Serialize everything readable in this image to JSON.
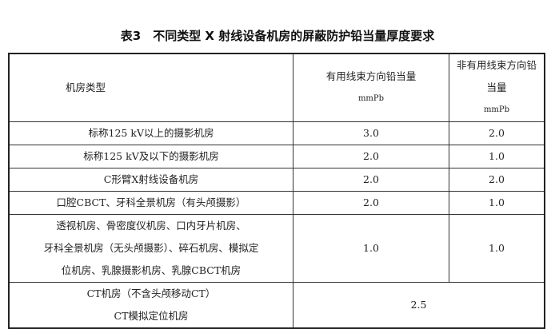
{
  "title": "表3　不同类型 X 射线设备机房的屏蔽防护铅当量厚度要求",
  "header": {
    "col1": "机房类型",
    "col2": "有用线束方向铅当量",
    "col3": "非有用线束方向铅当量",
    "unit": "mmPb"
  },
  "rows": [
    {
      "type": [
        "标称125 kV以上的摄影机房"
      ],
      "useful": "3.0",
      "nonuseful": "2.0"
    },
    {
      "type": [
        "标称125 kV及以下的摄影机房"
      ],
      "useful": "2.0",
      "nonuseful": "1.0"
    },
    {
      "type": [
        "C形臂X射线设备机房"
      ],
      "useful": "2.0",
      "nonuseful": "2.0"
    },
    {
      "type": [
        "口腔CBCT、牙科全景机房（有头颅摄影）"
      ],
      "useful": "2.0",
      "nonuseful": "1.0"
    },
    {
      "type": [
        "透视机房、骨密度仪机房、口内牙片机房、",
        "牙科全景机房（无头颅摄影）、碎石机房、模拟定",
        "位机房、乳腺摄影机房、乳腺CBCT机房"
      ],
      "useful": "1.0",
      "nonuseful": "1.0"
    },
    {
      "type": [
        "CT机房（不含头颅移动CT）",
        "CT模拟定位机房"
      ],
      "merged": "2.5"
    }
  ]
}
